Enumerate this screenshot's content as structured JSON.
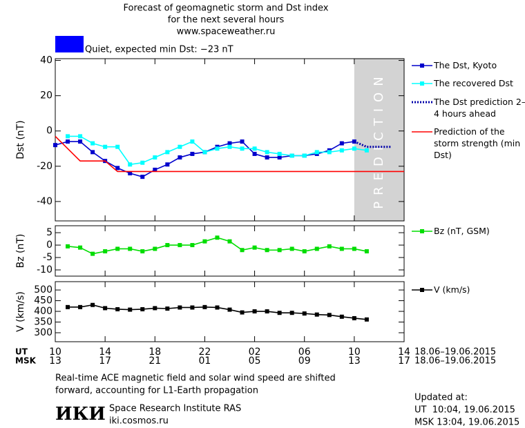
{
  "header": {
    "title_lines": [
      "Forecast of geomagnetic storm and Dst index",
      "for the next several hours",
      "www.spaceweather.ru"
    ]
  },
  "status": {
    "color": "#0000ff",
    "text": "Quiet, expected min Dst: −23 nT"
  },
  "time_axis": {
    "rows": [
      {
        "label": "UT",
        "dates": "18.06–19.06.2015",
        "ticks": [
          {
            "value": 0,
            "label": "10"
          },
          {
            "value": 4,
            "label": "14"
          },
          {
            "value": 8,
            "label": "18"
          },
          {
            "value": 12,
            "label": "22"
          },
          {
            "value": 16,
            "label": "02"
          },
          {
            "value": 20,
            "label": "06"
          },
          {
            "value": 24,
            "label": "10"
          },
          {
            "value": 28,
            "label": "14"
          }
        ]
      },
      {
        "label": "MSK",
        "dates": "18.06–19.06.2015",
        "ticks": [
          {
            "value": 0,
            "label": "13"
          },
          {
            "value": 4,
            "label": "17"
          },
          {
            "value": 8,
            "label": "21"
          },
          {
            "value": 12,
            "label": "01"
          },
          {
            "value": 16,
            "label": "05"
          },
          {
            "value": 20,
            "label": "09"
          },
          {
            "value": 24,
            "label": "13"
          },
          {
            "value": 28,
            "label": "17"
          }
        ]
      }
    ]
  },
  "chart_data": [
    {
      "type": "line",
      "ylabel": "Dst (nT)",
      "xlim": [
        0,
        28
      ],
      "ylim": [
        -51,
        41
      ],
      "yticks": [
        -40,
        -20,
        0,
        20,
        40
      ],
      "prediction_zone": {
        "range": [
          24,
          28
        ],
        "label": "PREDICTION",
        "color": "#d3d3d3"
      },
      "series": [
        {
          "name": "The Dst, Kyoto",
          "color": "#0000cc",
          "style": "solid",
          "marker": true,
          "x": [
            0,
            1,
            2,
            3,
            4,
            5,
            6,
            7,
            8,
            9,
            10,
            11,
            12,
            13,
            14,
            15,
            16,
            17,
            18,
            19,
            20,
            21,
            22,
            23,
            24
          ],
          "values": [
            -8,
            -6,
            -6,
            -12,
            -17,
            -21,
            -24,
            -26,
            -22,
            -19,
            -15,
            -13,
            -12,
            -9,
            -7,
            -6,
            -13,
            -15,
            -15,
            -14,
            -14,
            -13,
            -11,
            -7,
            -6
          ]
        },
        {
          "name": "The recovered Dst",
          "color": "#00ffff",
          "style": "solid",
          "marker": true,
          "x": [
            1,
            2,
            3,
            4,
            5,
            6,
            7,
            8,
            9,
            10,
            11,
            12,
            13,
            14,
            15,
            16,
            17,
            18,
            19,
            20,
            21,
            22,
            23,
            24,
            25
          ],
          "values": [
            -3,
            -3,
            -7,
            -9,
            -9,
            -19,
            -18,
            -15,
            -12,
            -9,
            -6,
            -12,
            -10,
            -9,
            -10,
            -10,
            -12,
            -13,
            -14,
            -14,
            -12,
            -12,
            -11,
            -10,
            -11
          ]
        },
        {
          "name": "The Dst prediction 2–4 hours ahead",
          "color": "#0000aa",
          "style": "dotted",
          "marker": false,
          "x": [
            24,
            25,
            26,
            27
          ],
          "values": [
            -6,
            -9,
            -9,
            -9
          ]
        },
        {
          "name": "Prediction of the storm strength (min Dst)",
          "color": "#ff0000",
          "style": "solid",
          "marker": false,
          "x": [
            0,
            2,
            4,
            5,
            28
          ],
          "values": [
            -3,
            -17,
            -17,
            -23,
            -23
          ]
        }
      ]
    },
    {
      "type": "line",
      "ylabel": "Bz (nT)",
      "xlim": [
        0,
        28
      ],
      "ylim": [
        -12.5,
        7.8
      ],
      "yticks": [
        -10,
        -5,
        0,
        5
      ],
      "series": [
        {
          "name": "Bz (nT, GSM)",
          "color": "#00dd00",
          "style": "solid",
          "marker": true,
          "x": [
            1,
            2,
            3,
            4,
            5,
            6,
            7,
            8,
            9,
            10,
            11,
            12,
            13,
            14,
            15,
            16,
            17,
            18,
            19,
            20,
            21,
            22,
            23,
            24,
            25
          ],
          "values": [
            -0.5,
            -1,
            -3.5,
            -2.5,
            -1.5,
            -1.5,
            -2.5,
            -1.5,
            0,
            0,
            0,
            1.5,
            3,
            1.5,
            -2,
            -1,
            -2,
            -2,
            -1.5,
            -2.5,
            -1.5,
            -0.5,
            -1.5,
            -1.5,
            -2.5
          ]
        }
      ]
    },
    {
      "type": "line",
      "ylabel": "V (km/s)",
      "xlim": [
        0,
        28
      ],
      "ylim": [
        258,
        539
      ],
      "yticks": [
        300,
        350,
        400,
        450,
        500
      ],
      "series": [
        {
          "name": "V (km/s)",
          "color": "#000000",
          "style": "solid",
          "marker": true,
          "x": [
            1,
            2,
            3,
            4,
            5,
            6,
            7,
            8,
            9,
            10,
            11,
            12,
            13,
            14,
            15,
            16,
            17,
            18,
            19,
            20,
            21,
            22,
            23,
            24,
            25
          ],
          "values": [
            420,
            420,
            430,
            415,
            410,
            408,
            410,
            415,
            413,
            418,
            418,
            420,
            418,
            408,
            395,
            400,
            400,
            393,
            393,
            390,
            385,
            383,
            375,
            368,
            362
          ]
        }
      ]
    }
  ],
  "note": [
    "Real-time ACE magnetic field and solar wind speed are shifted",
    "forward, accounting for L1-Earth propagation"
  ],
  "institute": {
    "logo": "ИКИ",
    "name": "Space Research Institute RAS",
    "url": "iki.cosmos.ru"
  },
  "updated": {
    "label": "Updated at:",
    "lines": [
      "UT  10:04, 19.06.2015",
      "MSK 13:04, 19.06.2015"
    ]
  }
}
